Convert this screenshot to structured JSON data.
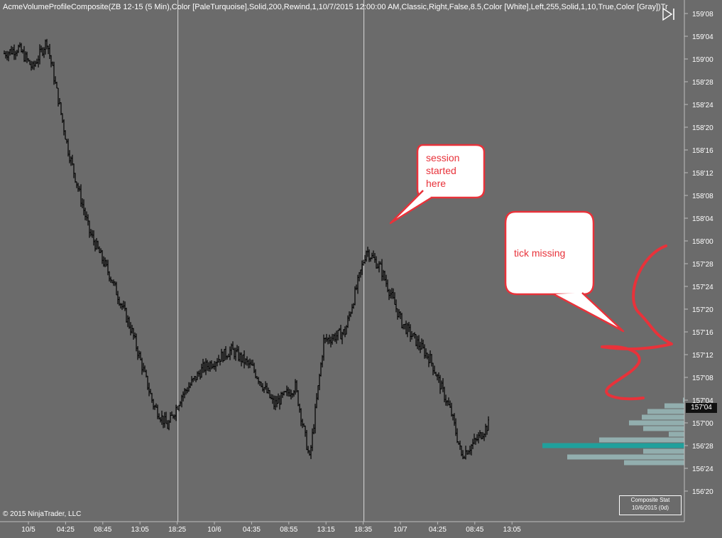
{
  "indicator_title": "AcmeVolumeProfileComposite(ZB 12-15 (5 Min),Color [PaleTurquoise],Solid,200,Rewind,1,10/7/2015 12:00:00 AM,Classic,Right,False,8.5,Color [White],Left,255,Solid,1,10,True,Color [Gray])Tr",
  "copyright": "© 2015 NinjaTrader, LLC",
  "composite_stat": {
    "line1": "Composite Stat",
    "line2": "10/6/2015 (0d)"
  },
  "last_price_label": "157'04",
  "annotations": [
    {
      "text": "session started here"
    },
    {
      "text": "tick missing"
    }
  ],
  "icons": {
    "nav": "skip-to-end-icon"
  },
  "colors": {
    "background": "#6b6b6b",
    "annotation_red": "#e8323a",
    "profile_bar": "#9fc4c4",
    "poc_bar": "#20a09c",
    "session_line": "#d9d9d9"
  },
  "chart_data": {
    "type": "ohlc-bar",
    "title": "",
    "price_axis": {
      "ticks": [
        "159'08",
        "159'04",
        "159'00",
        "158'28",
        "158'24",
        "158'20",
        "158'16",
        "158'12",
        "158'08",
        "158'04",
        "158'00",
        "157'28",
        "157'24",
        "157'20",
        "157'16",
        "157'12",
        "157'08",
        "157'04",
        "157'00",
        "156'28",
        "156'24",
        "156'20"
      ],
      "ylim": [
        156.625,
        159.25
      ]
    },
    "time_axis": {
      "ticks": [
        "10/5",
        "04:25",
        "08:45",
        "13:05",
        "18:25",
        "10/6",
        "04:35",
        "08:55",
        "13:15",
        "18:35",
        "10/7",
        "04:25",
        "08:45",
        "13:05"
      ]
    },
    "session_breaks": [
      "18:25",
      "18:35"
    ],
    "grid": false,
    "approx_close_path": [
      {
        "bar": 0,
        "price": 159.03
      },
      {
        "bar": 10,
        "price": 159.06
      },
      {
        "bar": 20,
        "price": 158.95
      },
      {
        "bar": 30,
        "price": 159.1
      },
      {
        "bar": 45,
        "price": 158.5
      },
      {
        "bar": 60,
        "price": 158.05
      },
      {
        "bar": 75,
        "price": 157.8
      },
      {
        "bar": 90,
        "price": 157.5
      },
      {
        "bar": 105,
        "price": 157.1
      },
      {
        "bar": 115,
        "price": 156.98
      },
      {
        "bar": 125,
        "price": 157.15
      },
      {
        "bar": 140,
        "price": 157.3
      },
      {
        "bar": 160,
        "price": 157.4
      },
      {
        "bar": 175,
        "price": 157.3
      },
      {
        "bar": 190,
        "price": 157.1
      },
      {
        "bar": 205,
        "price": 157.2
      },
      {
        "bar": 215,
        "price": 156.8
      },
      {
        "bar": 225,
        "price": 157.45
      },
      {
        "bar": 240,
        "price": 157.5
      },
      {
        "bar": 255,
        "price": 157.95
      },
      {
        "bar": 265,
        "price": 157.85
      },
      {
        "bar": 280,
        "price": 157.55
      },
      {
        "bar": 300,
        "price": 157.35
      },
      {
        "bar": 315,
        "price": 157.05
      },
      {
        "bar": 322,
        "price": 156.82
      },
      {
        "bar": 332,
        "price": 156.9
      },
      {
        "bar": 342,
        "price": 157.0
      }
    ],
    "volume_profile": [
      {
        "price": "157'04",
        "volume": 2
      },
      {
        "price": "157'03",
        "volume": 28
      },
      {
        "price": "157'02",
        "volume": 52
      },
      {
        "price": "157'01",
        "volume": 60
      },
      {
        "price": "157'00",
        "volume": 78
      },
      {
        "price": "156'31",
        "volume": 58
      },
      {
        "price": "156'30",
        "volume": 22
      },
      {
        "price": "156'29",
        "volume": 120
      },
      {
        "price": "156'28",
        "volume": 200
      },
      {
        "price": "156'27",
        "volume": 58
      },
      {
        "price": "156'26",
        "volume": 165
      },
      {
        "price": "156'25",
        "volume": 85
      }
    ],
    "poc_price": "156'28",
    "last_price": "157'04"
  }
}
